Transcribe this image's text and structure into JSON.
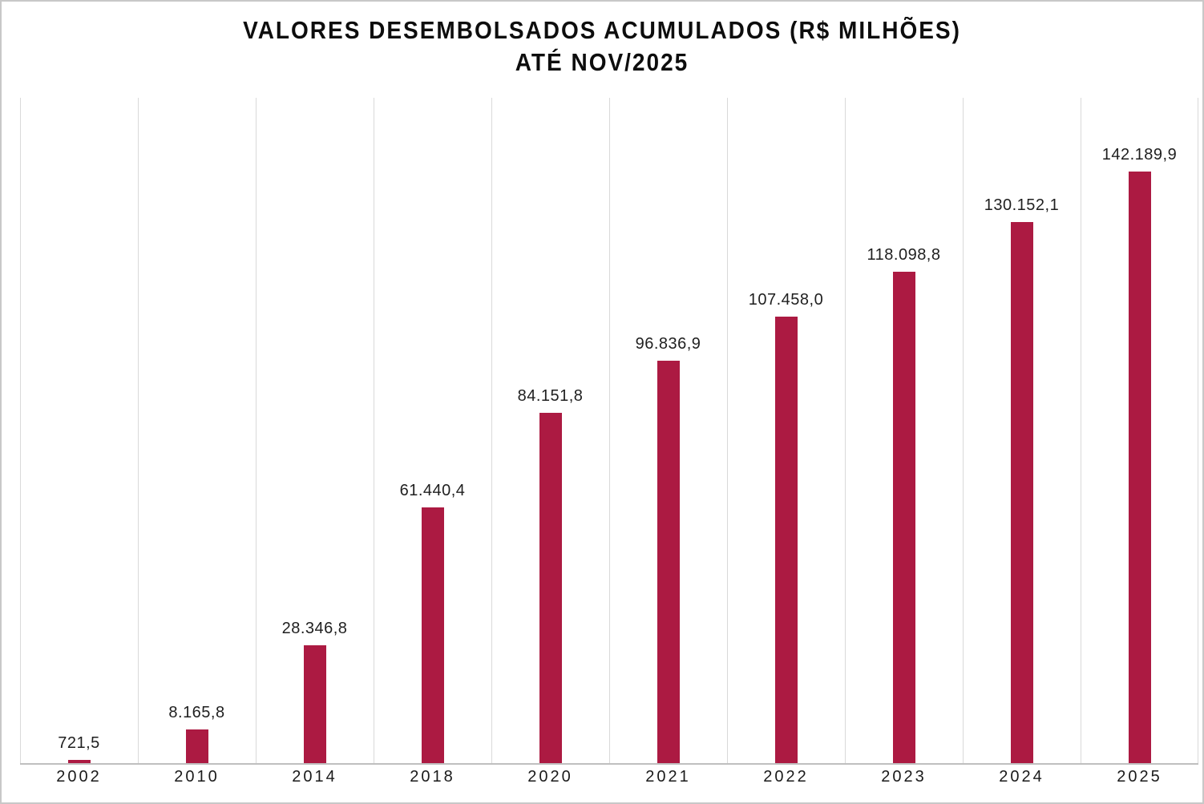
{
  "chart_data": {
    "type": "bar",
    "title_line1": "VALORES DESEMBOLSADOS ACUMULADOS (R$ MILHÕES)",
    "title_line2": "ATÉ NOV/2025",
    "categories": [
      "2002",
      "2010",
      "2014",
      "2018",
      "2020",
      "2021",
      "2022",
      "2023",
      "2024",
      "2025"
    ],
    "values": [
      721.5,
      8165.8,
      28346.8,
      61440.4,
      84151.8,
      96836.9,
      107458.0,
      118098.8,
      130152.1,
      142189.9
    ],
    "value_labels": [
      "721,5",
      "8.165,8",
      "28.346,8",
      "61.440,4",
      "84.151,8",
      "96.836,9",
      "107.458,0",
      "118.098,8",
      "130.152,1",
      "142.189,9"
    ],
    "xlabel": "",
    "ylabel": "",
    "ylim": [
      0,
      160000
    ],
    "grid": "vertical-gridlines-only",
    "legend_position": "none",
    "bar_color": "#AC1A42",
    "gridline_color": "#d9d9d9",
    "axis_line_color": "#bfbfbf",
    "title_color": "#0d0d0d",
    "label_color": "#1f1f1f",
    "background_color": "#ffffff",
    "border_color": "#c8c8c8"
  }
}
